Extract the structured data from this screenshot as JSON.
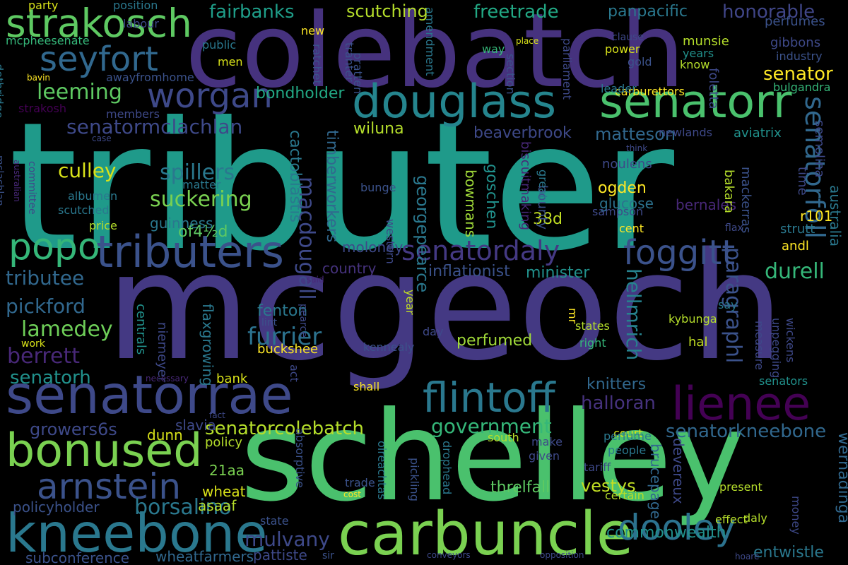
{
  "words": [
    {
      "text": "tributer",
      "color": "#1f9a8a"
    },
    {
      "text": "mcgeoch",
      "color": "#443983"
    },
    {
      "text": "schelley",
      "color": "#4ac16d"
    },
    {
      "text": "colebatch",
      "color": "#46327e"
    },
    {
      "text": "senatorrae",
      "color": "#3e4989"
    },
    {
      "text": "carbuncle",
      "color": "#7ad151"
    },
    {
      "text": "kneebone",
      "color": "#2a788e"
    },
    {
      "text": "douglass",
      "color": "#25858e"
    },
    {
      "text": "senatorr",
      "color": "#4ac16d"
    },
    {
      "text": "strakosch",
      "color": "#5ec962"
    },
    {
      "text": "tributers",
      "color": "#3b528b"
    },
    {
      "text": "bonused",
      "color": "#7ad151"
    },
    {
      "text": "flintoff",
      "color": "#2a788e"
    },
    {
      "text": "lienee",
      "color": "#440154"
    },
    {
      "text": "arnstein",
      "color": "#3b528b"
    },
    {
      "text": "dooley",
      "color": "#2c728e"
    },
    {
      "text": "popo",
      "color": "#35b779"
    },
    {
      "text": "seyfort",
      "color": "#31688e"
    },
    {
      "text": "worgan",
      "color": "#3e4989"
    },
    {
      "text": "foggitt",
      "color": "#3b528b"
    },
    {
      "text": "senatordaly",
      "color": "#443983"
    },
    {
      "text": "senatorfoll",
      "color": "#31688e"
    },
    {
      "text": "senatormclachlan",
      "color": "#3e4989"
    },
    {
      "text": "leeming",
      "color": "#5ec962"
    },
    {
      "text": "senatorcolebatch",
      "color": "#b5de2b"
    },
    {
      "text": "senatorkneebone",
      "color": "#31688e"
    },
    {
      "text": "government",
      "color": "#35b779"
    },
    {
      "text": "borsalino",
      "color": "#2a788e"
    },
    {
      "text": "mulvany",
      "color": "#3e4989"
    },
    {
      "text": "fairbanks",
      "color": "#1f9e89"
    },
    {
      "text": "freetrade",
      "color": "#22a884"
    },
    {
      "text": "honorable",
      "color": "#404688"
    },
    {
      "text": "scutching",
      "color": "#b5de2b"
    },
    {
      "text": "panpacific",
      "color": "#2a788e"
    },
    {
      "text": "senator",
      "color": "#fde725"
    },
    {
      "text": "paragraphl",
      "color": "#3b528b"
    },
    {
      "text": "hellmrich",
      "color": "#26828e"
    },
    {
      "text": "macdougall",
      "color": "#3e4989"
    },
    {
      "text": "furrier",
      "color": "#2c728e"
    },
    {
      "text": "suckering",
      "color": "#7ad151"
    },
    {
      "text": "spillers",
      "color": "#2a788e"
    },
    {
      "text": "culley",
      "color": "#d8e219"
    },
    {
      "text": "lamedey",
      "color": "#6ece58"
    },
    {
      "text": "pickford",
      "color": "#31688e"
    },
    {
      "text": "tributee",
      "color": "#31688e"
    },
    {
      "text": "berrett",
      "color": "#482878"
    },
    {
      "text": "senatorh",
      "color": "#21918c"
    },
    {
      "text": "halloran",
      "color": "#46327e"
    },
    {
      "text": "durell",
      "color": "#35b779"
    },
    {
      "text": "growers6s",
      "color": "#3e4989"
    },
    {
      "text": "matteson",
      "color": "#31688e"
    },
    {
      "text": "beaverbrook",
      "color": "#3e4989"
    },
    {
      "text": "bondholder",
      "color": "#22a884"
    },
    {
      "text": "wiluna",
      "color": "#b5de2b"
    },
    {
      "text": "cactoblastis",
      "color": "#2a788e"
    },
    {
      "text": "timberworkers",
      "color": "#31688e"
    },
    {
      "text": "georgepearce",
      "color": "#2a788e"
    },
    {
      "text": "goschen",
      "color": "#21918c"
    },
    {
      "text": "inflationist",
      "color": "#3b528b"
    },
    {
      "text": "minister",
      "color": "#21918c"
    },
    {
      "text": "moloney",
      "color": "#3e4989"
    },
    {
      "text": "country",
      "color": "#46327e"
    },
    {
      "text": "perfumed",
      "color": "#a0da39"
    },
    {
      "text": "fenton",
      "color": "#2a788e"
    },
    {
      "text": "knitters",
      "color": "#31688e"
    },
    {
      "text": "vestys",
      "color": "#c2df23"
    },
    {
      "text": "devereux",
      "color": "#3e4989"
    },
    {
      "text": "brucepage",
      "color": "#31688e"
    },
    {
      "text": "threlfall",
      "color": "#5ec962"
    },
    {
      "text": "commonwealth",
      "color": "#21918c"
    },
    {
      "text": "entwistle",
      "color": "#2a788e"
    },
    {
      "text": "wernadinga",
      "color": "#31688e"
    },
    {
      "text": "subconference",
      "color": "#3b528b"
    },
    {
      "text": "wheatfarmers",
      "color": "#31688e"
    },
    {
      "text": "pattiste",
      "color": "#3e4989"
    },
    {
      "text": "policyholder",
      "color": "#3b528b"
    },
    {
      "text": "asaaf",
      "color": "#b5de2b"
    },
    {
      "text": "wheat",
      "color": "#d8e219"
    },
    {
      "text": "21aa",
      "color": "#7ad151"
    },
    {
      "text": "slavia",
      "color": "#3e4989"
    },
    {
      "text": "dunn",
      "color": "#d8e219"
    },
    {
      "text": "policy",
      "color": "#b5de2b"
    },
    {
      "text": "bank",
      "color": "#d8e219"
    },
    {
      "text": "buckshee",
      "color": "#fde725"
    },
    {
      "text": "niemeyer",
      "color": "#3e4989"
    },
    {
      "text": "flaxgrowing",
      "color": "#2a788e"
    },
    {
      "text": "centrals",
      "color": "#21918c"
    },
    {
      "text": "of4½d",
      "color": "#5ec962"
    },
    {
      "text": "guinness",
      "color": "#2a788e"
    },
    {
      "text": "glucose",
      "color": "#2c728e"
    },
    {
      "text": "ogden",
      "color": "#fde725"
    },
    {
      "text": "38d",
      "color": "#c2df23"
    },
    {
      "text": "bowmans",
      "color": "#a0da39"
    },
    {
      "text": "biscuitmaking",
      "color": "#482878"
    },
    {
      "text": "bounty",
      "color": "#3b528b"
    },
    {
      "text": "noulens",
      "color": "#3e4989"
    },
    {
      "text": "bernales",
      "color": "#482878"
    },
    {
      "text": "bakara",
      "color": "#b5de2b"
    },
    {
      "text": "mackerras",
      "color": "#3b528b"
    },
    {
      "text": "sampson",
      "color": "#3e4989"
    },
    {
      "text": "r101",
      "color": "#fde725"
    },
    {
      "text": "strutt",
      "color": "#2a788e"
    },
    {
      "text": "andl",
      "color": "#fde725"
    },
    {
      "text": "australia",
      "color": "#2a788e"
    },
    {
      "text": "time",
      "color": "#3e4989"
    },
    {
      "text": "semolina",
      "color": "#3e4989"
    },
    {
      "text": "aviatrix",
      "color": "#21918c"
    },
    {
      "text": "newlands",
      "color": "#3e4989"
    },
    {
      "text": "carburettors",
      "color": "#fde725"
    },
    {
      "text": "leader",
      "color": "#2a788e"
    },
    {
      "text": "foletta",
      "color": "#3e4989"
    },
    {
      "text": "bulgandra",
      "color": "#35b779"
    },
    {
      "text": "industry",
      "color": "#3b528b"
    },
    {
      "text": "gibbons",
      "color": "#3e4989"
    },
    {
      "text": "perfumes",
      "color": "#3b528b"
    },
    {
      "text": "munsie",
      "color": "#b5de2b"
    },
    {
      "text": "years",
      "color": "#21918c"
    },
    {
      "text": "know",
      "color": "#b5de2b"
    },
    {
      "text": "gold",
      "color": "#3b528b"
    },
    {
      "text": "power",
      "color": "#d8e219"
    },
    {
      "text": "clause",
      "color": "#3e4989"
    },
    {
      "text": "place",
      "color": "#d8e219"
    },
    {
      "text": "way",
      "color": "#35b779"
    },
    {
      "text": "amendment",
      "color": "#2a788e"
    },
    {
      "text": "section",
      "color": "#3b528b"
    },
    {
      "text": "parliament",
      "color": "#3e4989"
    },
    {
      "text": "think",
      "color": "#3e4989"
    },
    {
      "text": "ratchet",
      "color": "#3b528b"
    },
    {
      "text": "tranter",
      "color": "#3b528b"
    },
    {
      "text": "pratten",
      "color": "#3b528b"
    },
    {
      "text": "new",
      "color": "#fde725"
    },
    {
      "text": "public",
      "color": "#2a788e"
    },
    {
      "text": "men",
      "color": "#d8e219"
    },
    {
      "text": "awayfromhome",
      "color": "#3b528b"
    },
    {
      "text": "members",
      "color": "#3e4989"
    },
    {
      "text": "party",
      "color": "#d8e219"
    },
    {
      "text": "position",
      "color": "#2a788e"
    },
    {
      "text": "labour",
      "color": "#3e4989"
    },
    {
      "text": "mcpheesenate",
      "color": "#35b779"
    },
    {
      "text": "bavin",
      "color": "#fde725"
    },
    {
      "text": "strakosh",
      "color": "#440154"
    },
    {
      "text": "dethridge",
      "color": "#2a788e"
    },
    {
      "text": "case",
      "color": "#3e4989"
    },
    {
      "text": "mclachlan",
      "color": "#3b528b"
    },
    {
      "text": "australian",
      "color": "#482878"
    },
    {
      "text": "committee",
      "color": "#3e4989"
    },
    {
      "text": "albumen",
      "color": "#2a788e"
    },
    {
      "text": "scutched",
      "color": "#2a788e"
    },
    {
      "text": "matter",
      "color": "#2a788e"
    },
    {
      "text": "price",
      "color": "#b5de2b"
    },
    {
      "text": "bunge",
      "color": "#3b528b"
    },
    {
      "text": "western",
      "color": "#3e4989"
    },
    {
      "text": "great",
      "color": "#2a788e"
    },
    {
      "text": "cent",
      "color": "#fde725"
    },
    {
      "text": "flax",
      "color": "#3e4989"
    },
    {
      "text": "said",
      "color": "#482878"
    },
    {
      "text": "year",
      "color": "#c2df23"
    },
    {
      "text": "day",
      "color": "#3e4989"
    },
    {
      "text": "kennealy",
      "color": "#3b528b"
    },
    {
      "text": "mr",
      "color": "#fde725"
    },
    {
      "text": "right",
      "color": "#35b779"
    },
    {
      "text": "states",
      "color": "#b5de2b"
    },
    {
      "text": "kybunga",
      "color": "#b5de2b"
    },
    {
      "text": "hal",
      "color": "#c2df23"
    },
    {
      "text": "say",
      "color": "#2a788e"
    },
    {
      "text": "measure",
      "color": "#3e4989"
    },
    {
      "text": "unpegging",
      "color": "#3e4989"
    },
    {
      "text": "wickens",
      "color": "#3e4989"
    },
    {
      "text": "senators",
      "color": "#21918c"
    },
    {
      "text": "lint",
      "color": "#3b528b"
    },
    {
      "text": "pearce",
      "color": "#3e4989"
    },
    {
      "text": "act",
      "color": "#3e4989"
    },
    {
      "text": "shall",
      "color": "#fde725"
    },
    {
      "text": "work",
      "color": "#d8e219"
    },
    {
      "text": "necessary",
      "color": "#482878"
    },
    {
      "text": "fact",
      "color": "#3e4989"
    },
    {
      "text": "court",
      "color": "#d8e219"
    },
    {
      "text": "south",
      "color": "#b5de2b"
    },
    {
      "text": "make",
      "color": "#3e4989"
    },
    {
      "text": "perfume",
      "color": "#2a788e"
    },
    {
      "text": "people",
      "color": "#2a788e"
    },
    {
      "text": "given",
      "color": "#3e4989"
    },
    {
      "text": "tariff",
      "color": "#3e4989"
    },
    {
      "text": "certain",
      "color": "#b5de2b"
    },
    {
      "text": "present",
      "color": "#b5de2b"
    },
    {
      "text": "effect",
      "color": "#b5de2b"
    },
    {
      "text": "daly",
      "color": "#b5de2b"
    },
    {
      "text": "money",
      "color": "#3e4989"
    },
    {
      "text": "hoare",
      "color": "#3e4989"
    },
    {
      "text": "opposition",
      "color": "#3e4989"
    },
    {
      "text": "conveyors",
      "color": "#3e4989"
    },
    {
      "text": "cost",
      "color": "#fde725"
    },
    {
      "text": "sir",
      "color": "#3b528b"
    },
    {
      "text": "trade",
      "color": "#3b528b"
    },
    {
      "text": "state",
      "color": "#3b528b"
    },
    {
      "text": "absorptive",
      "color": "#3b528b"
    },
    {
      "text": "oireachtas",
      "color": "#2a788e"
    },
    {
      "text": "pickling",
      "color": "#3b528b"
    },
    {
      "text": "drophead",
      "color": "#2a788e"
    }
  ]
}
